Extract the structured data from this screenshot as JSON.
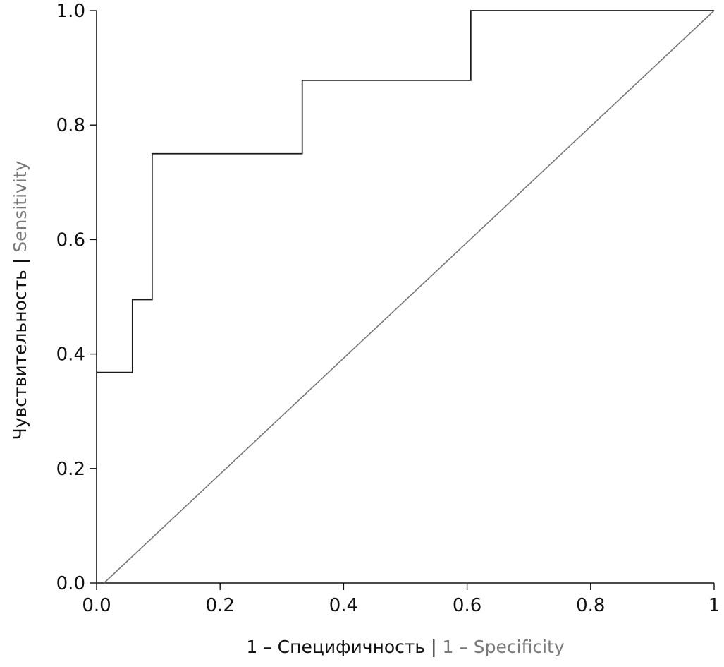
{
  "chart_data": {
    "type": "line",
    "xlabel": {
      "primary": "1 – Специфичность",
      "separator": " | ",
      "secondary": "1 – Specificity"
    },
    "ylabel": {
      "primary": "Чувствительность",
      "separator": " | ",
      "secondary": "Sensitivity"
    },
    "xlim": [
      0,
      1
    ],
    "ylim": [
      0,
      1
    ],
    "x_ticks": [
      0,
      0.2,
      0.4,
      0.6,
      0.8,
      1
    ],
    "x_tick_labels": [
      "0.0",
      "0.2",
      "0.4",
      "0.6",
      "0.8",
      "1"
    ],
    "y_ticks": [
      0,
      0.2,
      0.4,
      0.6,
      0.8,
      1
    ],
    "y_tick_labels": [
      "0.0",
      "0.2",
      "0.4",
      "0.6",
      "0.8",
      "1.0"
    ],
    "grid": false,
    "legend": "none",
    "series": [
      {
        "style": "step",
        "color": "#1a1a1a",
        "points": [
          {
            "x": 0.0,
            "y": 0.368
          },
          {
            "x": 0.058,
            "y": 0.368
          },
          {
            "x": 0.058,
            "y": 0.495
          },
          {
            "x": 0.09,
            "y": 0.495
          },
          {
            "x": 0.09,
            "y": 0.75
          },
          {
            "x": 0.333,
            "y": 0.75
          },
          {
            "x": 0.333,
            "y": 0.878
          },
          {
            "x": 0.606,
            "y": 0.878
          },
          {
            "x": 0.606,
            "y": 1.0
          },
          {
            "x": 1.0,
            "y": 1.0
          }
        ]
      },
      {
        "style": "reference-diagonal",
        "color": "#777777",
        "points": [
          {
            "x": 0.012,
            "y": 0.0
          },
          {
            "x": 1.0,
            "y": 1.0
          }
        ]
      }
    ]
  },
  "colors": {
    "axis": "#111111",
    "secondary_text": "#7a7a7a",
    "primary_text": "#111111"
  }
}
